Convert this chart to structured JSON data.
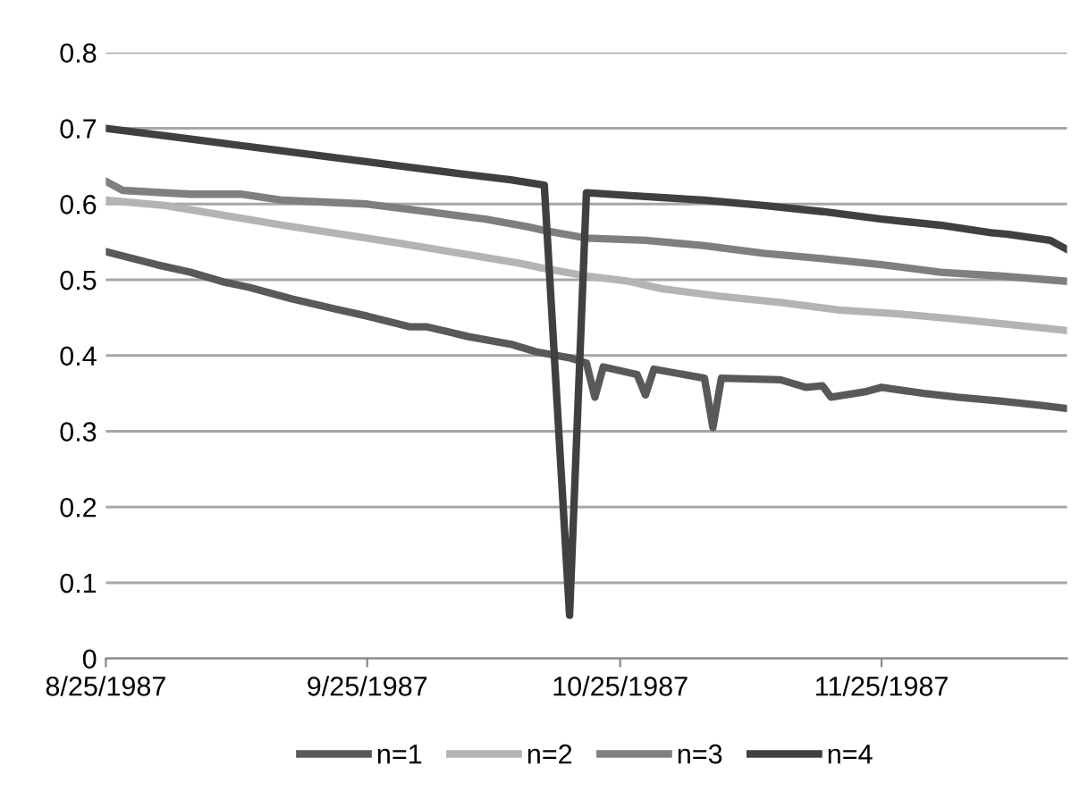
{
  "chart_data": {
    "type": "line",
    "xlim": [
      "1987-08-25",
      "1987-12-17"
    ],
    "ylim": [
      0,
      0.8
    ],
    "yticks": [
      0,
      0.1,
      0.2,
      0.3,
      0.4,
      0.5,
      0.6,
      0.7,
      0.8
    ],
    "xticks": [
      {
        "value": "1987-08-25",
        "label": "8/25/1987"
      },
      {
        "value": "1987-09-25",
        "label": "9/25/1987"
      },
      {
        "value": "1987-10-25",
        "label": "10/25/1987"
      },
      {
        "value": "1987-11-25",
        "label": "11/25/1987"
      }
    ],
    "grid": "y",
    "legend": "bottom",
    "line_style": "solid",
    "marker": "none",
    "series": [
      {
        "name": "n=1",
        "color": "#595959",
        "x": [
          "1987-08-25",
          "1987-08-31",
          "1987-09-04",
          "1987-09-08",
          "1987-09-11",
          "1987-09-16",
          "1987-09-21",
          "1987-09-25",
          "1987-09-30",
          "1987-10-02",
          "1987-10-07",
          "1987-10-12",
          "1987-10-15",
          "1987-10-19",
          "1987-10-21",
          "1987-10-22",
          "1987-10-23",
          "1987-10-27",
          "1987-10-28",
          "1987-10-29",
          "1987-11-04",
          "1987-11-05",
          "1987-11-06",
          "1987-11-13",
          "1987-11-16",
          "1987-11-18",
          "1987-11-19",
          "1987-11-23",
          "1987-11-25",
          "1987-11-30",
          "1987-12-04",
          "1987-12-09",
          "1987-12-14",
          "1987-12-17"
        ],
        "values": [
          0.537,
          0.52,
          0.51,
          0.497,
          0.49,
          0.475,
          0.462,
          0.452,
          0.438,
          0.438,
          0.425,
          0.415,
          0.405,
          0.397,
          0.39,
          0.345,
          0.385,
          0.375,
          0.348,
          0.382,
          0.37,
          0.305,
          0.37,
          0.368,
          0.358,
          0.36,
          0.345,
          0.352,
          0.358,
          0.35,
          0.345,
          0.34,
          0.334,
          0.33
        ]
      },
      {
        "name": "n=2",
        "color": "#b4b4b4",
        "x": [
          "1987-08-25",
          "1987-09-01",
          "1987-09-08",
          "1987-09-15",
          "1987-09-22",
          "1987-09-29",
          "1987-10-06",
          "1987-10-13",
          "1987-10-16",
          "1987-10-21",
          "1987-10-26",
          "1987-10-30",
          "1987-11-06",
          "1987-11-13",
          "1987-11-20",
          "1987-11-27",
          "1987-12-04",
          "1987-12-11",
          "1987-12-17"
        ],
        "values": [
          0.605,
          0.598,
          0.585,
          0.572,
          0.56,
          0.548,
          0.535,
          0.522,
          0.515,
          0.505,
          0.498,
          0.488,
          0.478,
          0.47,
          0.46,
          0.455,
          0.448,
          0.44,
          0.433
        ]
      },
      {
        "name": "n=3",
        "color": "#7f7f7f",
        "x": [
          "1987-08-25",
          "1987-08-27",
          "1987-09-04",
          "1987-09-10",
          "1987-09-15",
          "1987-09-25",
          "1987-10-02",
          "1987-10-09",
          "1987-10-14",
          "1987-10-16",
          "1987-10-21",
          "1987-10-28",
          "1987-11-04",
          "1987-11-11",
          "1987-11-18",
          "1987-11-25",
          "1987-12-02",
          "1987-12-09",
          "1987-12-17"
        ],
        "values": [
          0.63,
          0.618,
          0.613,
          0.613,
          0.605,
          0.6,
          0.59,
          0.58,
          0.57,
          0.565,
          0.555,
          0.552,
          0.545,
          0.535,
          0.528,
          0.52,
          0.51,
          0.505,
          0.498
        ]
      },
      {
        "name": "n=4",
        "color": "#404040",
        "x": [
          "1987-08-25",
          "1987-09-01",
          "1987-09-08",
          "1987-09-15",
          "1987-09-22",
          "1987-09-29",
          "1987-10-06",
          "1987-10-12",
          "1987-10-16",
          "1987-10-19",
          "1987-10-21",
          "1987-10-28",
          "1987-11-04",
          "1987-11-11",
          "1987-11-18",
          "1987-11-25",
          "1987-12-02",
          "1987-12-08",
          "1987-12-10",
          "1987-12-15",
          "1987-12-17"
        ],
        "values": [
          0.7,
          0.69,
          0.68,
          0.67,
          0.66,
          0.65,
          0.64,
          0.632,
          0.625,
          0.057,
          0.615,
          0.61,
          0.605,
          0.598,
          0.59,
          0.58,
          0.572,
          0.562,
          0.56,
          0.552,
          0.54
        ]
      }
    ]
  }
}
